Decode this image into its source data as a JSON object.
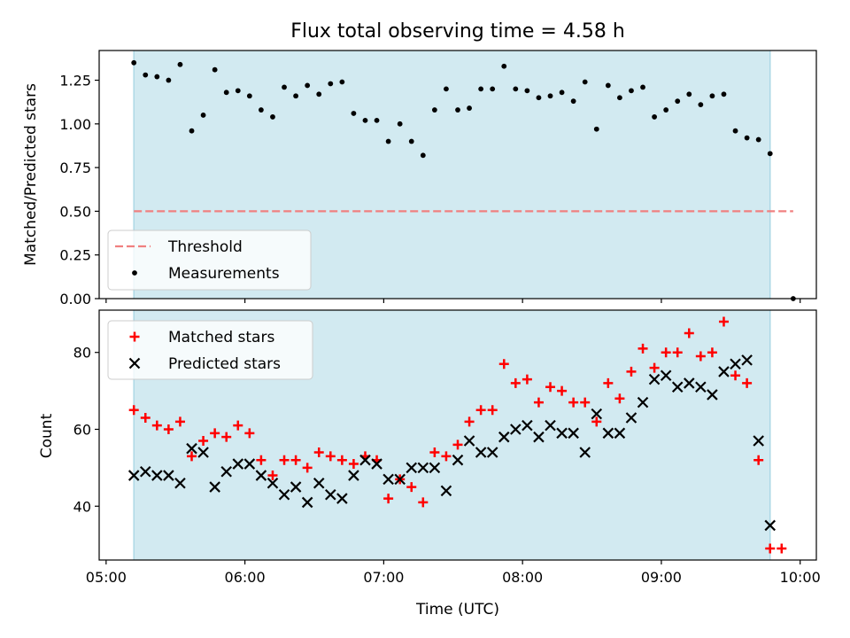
{
  "chart_data": [
    {
      "type": "scatter",
      "title": "Flux total observing time = 4.58 h",
      "xlabel": "",
      "ylabel": "Matched/Predicted stars",
      "ylim": [
        0,
        1.42
      ],
      "yticks": [
        "0.00",
        "0.25",
        "0.50",
        "0.75",
        "1.00",
        "1.25"
      ],
      "ytick_values": [
        0,
        0.25,
        0.5,
        0.75,
        1.0,
        1.25
      ],
      "xlim": [
        "04:57",
        "10:07"
      ],
      "shaded_span": [
        "05:12",
        "09:47"
      ],
      "shade_color": "#add8e6",
      "threshold": {
        "name": "Threshold",
        "value": 0.5,
        "x_range": [
          "05:12",
          "09:57"
        ],
        "color": "#f08080"
      },
      "legend": {
        "placement": "lower-left",
        "entries": [
          "Threshold",
          "Measurements"
        ]
      },
      "series": [
        {
          "name": "Measurements",
          "marker": "dot",
          "color": "#000000",
          "points": [
            [
              "05:12",
              1.35
            ],
            [
              "05:17",
              1.28
            ],
            [
              "05:22",
              1.27
            ],
            [
              "05:27",
              1.25
            ],
            [
              "05:32",
              1.34
            ],
            [
              "05:37",
              0.96
            ],
            [
              "05:42",
              1.05
            ],
            [
              "05:47",
              1.31
            ],
            [
              "05:52",
              1.18
            ],
            [
              "05:57",
              1.19
            ],
            [
              "06:02",
              1.16
            ],
            [
              "06:07",
              1.08
            ],
            [
              "06:12",
              1.04
            ],
            [
              "06:17",
              1.21
            ],
            [
              "06:22",
              1.16
            ],
            [
              "06:27",
              1.22
            ],
            [
              "06:32",
              1.17
            ],
            [
              "06:37",
              1.23
            ],
            [
              "06:42",
              1.24
            ],
            [
              "06:47",
              1.06
            ],
            [
              "06:52",
              1.02
            ],
            [
              "06:57",
              1.02
            ],
            [
              "07:02",
              0.9
            ],
            [
              "07:07",
              1.0
            ],
            [
              "07:12",
              0.9
            ],
            [
              "07:17",
              0.82
            ],
            [
              "07:22",
              1.08
            ],
            [
              "07:27",
              1.2
            ],
            [
              "07:32",
              1.08
            ],
            [
              "07:37",
              1.09
            ],
            [
              "07:42",
              1.2
            ],
            [
              "07:47",
              1.2
            ],
            [
              "07:52",
              1.33
            ],
            [
              "07:57",
              1.2
            ],
            [
              "08:02",
              1.19
            ],
            [
              "08:07",
              1.15
            ],
            [
              "08:12",
              1.16
            ],
            [
              "08:17",
              1.18
            ],
            [
              "08:22",
              1.13
            ],
            [
              "08:27",
              1.24
            ],
            [
              "08:32",
              0.97
            ],
            [
              "08:37",
              1.22
            ],
            [
              "08:42",
              1.15
            ],
            [
              "08:47",
              1.19
            ],
            [
              "08:52",
              1.21
            ],
            [
              "08:57",
              1.04
            ],
            [
              "09:02",
              1.08
            ],
            [
              "09:07",
              1.13
            ],
            [
              "09:12",
              1.17
            ],
            [
              "09:17",
              1.11
            ],
            [
              "09:22",
              1.16
            ],
            [
              "09:27",
              1.17
            ],
            [
              "09:32",
              0.96
            ],
            [
              "09:37",
              0.92
            ],
            [
              "09:42",
              0.91
            ],
            [
              "09:47",
              0.83
            ],
            [
              "09:57",
              0.0
            ]
          ]
        }
      ]
    },
    {
      "type": "scatter",
      "title": "",
      "xlabel": "Time (UTC)",
      "ylabel": "Count",
      "ylim": [
        26,
        91
      ],
      "yticks": [
        "40",
        "60",
        "80"
      ],
      "ytick_values": [
        40,
        60,
        80
      ],
      "xlim": [
        "04:57",
        "10:07"
      ],
      "xticks": [
        "05:00",
        "06:00",
        "07:00",
        "08:00",
        "09:00",
        "10:00"
      ],
      "shaded_span": [
        "05:12",
        "09:47"
      ],
      "shade_color": "#add8e6",
      "legend": {
        "placement": "upper-left",
        "entries": [
          "Matched stars",
          "Predicted stars"
        ]
      },
      "series": [
        {
          "name": "Matched stars",
          "marker": "plus",
          "color": "#ff0000",
          "points": [
            [
              "05:12",
              65
            ],
            [
              "05:17",
              63
            ],
            [
              "05:22",
              61
            ],
            [
              "05:27",
              60
            ],
            [
              "05:32",
              62
            ],
            [
              "05:37",
              53
            ],
            [
              "05:42",
              57
            ],
            [
              "05:47",
              59
            ],
            [
              "05:52",
              58
            ],
            [
              "05:57",
              61
            ],
            [
              "06:02",
              59
            ],
            [
              "06:07",
              52
            ],
            [
              "06:12",
              48
            ],
            [
              "06:17",
              52
            ],
            [
              "06:22",
              52
            ],
            [
              "06:27",
              50
            ],
            [
              "06:32",
              54
            ],
            [
              "06:37",
              53
            ],
            [
              "06:42",
              52
            ],
            [
              "06:47",
              51
            ],
            [
              "06:52",
              53
            ],
            [
              "06:57",
              52
            ],
            [
              "07:02",
              42
            ],
            [
              "07:07",
              47
            ],
            [
              "07:12",
              45
            ],
            [
              "07:17",
              41
            ],
            [
              "07:22",
              54
            ],
            [
              "07:27",
              53
            ],
            [
              "07:32",
              56
            ],
            [
              "07:37",
              62
            ],
            [
              "07:42",
              65
            ],
            [
              "07:47",
              65
            ],
            [
              "07:52",
              77
            ],
            [
              "07:57",
              72
            ],
            [
              "08:02",
              73
            ],
            [
              "08:07",
              67
            ],
            [
              "08:12",
              71
            ],
            [
              "08:17",
              70
            ],
            [
              "08:22",
              67
            ],
            [
              "08:27",
              67
            ],
            [
              "08:32",
              62
            ],
            [
              "08:37",
              72
            ],
            [
              "08:42",
              68
            ],
            [
              "08:47",
              75
            ],
            [
              "08:52",
              81
            ],
            [
              "08:57",
              76
            ],
            [
              "09:02",
              80
            ],
            [
              "09:07",
              80
            ],
            [
              "09:12",
              85
            ],
            [
              "09:17",
              79
            ],
            [
              "09:22",
              80
            ],
            [
              "09:27",
              88
            ],
            [
              "09:32",
              74
            ],
            [
              "09:37",
              72
            ],
            [
              "09:42",
              52
            ],
            [
              "09:47",
              29
            ],
            [
              "09:52",
              29
            ]
          ]
        },
        {
          "name": "Predicted stars",
          "marker": "x",
          "color": "#000000",
          "points": [
            [
              "05:12",
              48
            ],
            [
              "05:17",
              49
            ],
            [
              "05:22",
              48
            ],
            [
              "05:27",
              48
            ],
            [
              "05:32",
              46
            ],
            [
              "05:37",
              55
            ],
            [
              "05:42",
              54
            ],
            [
              "05:47",
              45
            ],
            [
              "05:52",
              49
            ],
            [
              "05:57",
              51
            ],
            [
              "06:02",
              51
            ],
            [
              "06:07",
              48
            ],
            [
              "06:12",
              46
            ],
            [
              "06:17",
              43
            ],
            [
              "06:22",
              45
            ],
            [
              "06:27",
              41
            ],
            [
              "06:32",
              46
            ],
            [
              "06:37",
              43
            ],
            [
              "06:42",
              42
            ],
            [
              "06:47",
              48
            ],
            [
              "06:52",
              52
            ],
            [
              "06:57",
              51
            ],
            [
              "07:02",
              47
            ],
            [
              "07:07",
              47
            ],
            [
              "07:12",
              50
            ],
            [
              "07:17",
              50
            ],
            [
              "07:22",
              50
            ],
            [
              "07:27",
              44
            ],
            [
              "07:32",
              52
            ],
            [
              "07:37",
              57
            ],
            [
              "07:42",
              54
            ],
            [
              "07:47",
              54
            ],
            [
              "07:52",
              58
            ],
            [
              "07:57",
              60
            ],
            [
              "08:02",
              61
            ],
            [
              "08:07",
              58
            ],
            [
              "08:12",
              61
            ],
            [
              "08:17",
              59
            ],
            [
              "08:22",
              59
            ],
            [
              "08:27",
              54
            ],
            [
              "08:32",
              64
            ],
            [
              "08:37",
              59
            ],
            [
              "08:42",
              59
            ],
            [
              "08:47",
              63
            ],
            [
              "08:52",
              67
            ],
            [
              "08:57",
              73
            ],
            [
              "09:02",
              74
            ],
            [
              "09:07",
              71
            ],
            [
              "09:12",
              72
            ],
            [
              "09:17",
              71
            ],
            [
              "09:22",
              69
            ],
            [
              "09:27",
              75
            ],
            [
              "09:32",
              77
            ],
            [
              "09:37",
              78
            ],
            [
              "09:42",
              57
            ],
            [
              "09:47",
              35
            ]
          ]
        }
      ]
    }
  ]
}
